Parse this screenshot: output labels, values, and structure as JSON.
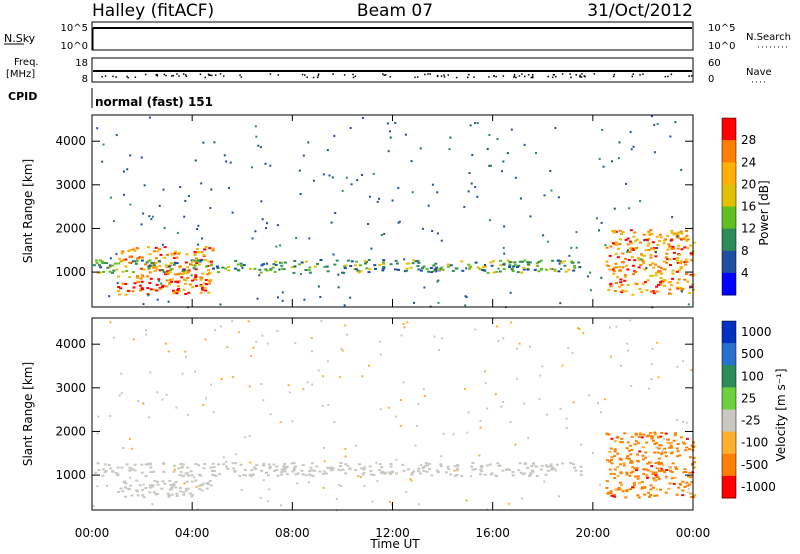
{
  "header": {
    "station": "Halley (fitACF)",
    "beam": "Beam 07",
    "date": "31/Oct/2012"
  },
  "top_panels": {
    "nsky_label": "N.Sky",
    "nsky_ticks": [
      "10^5",
      "10^0"
    ],
    "nsearch_label": "N.Search",
    "nsearch_ticks": [
      "10^5",
      "10^0"
    ],
    "freq_label": "Freq.",
    "freq_unit": "[MHz]",
    "freq_ticks": [
      "18",
      "8"
    ],
    "nave_label": "Nave",
    "nave_ticks": [
      "60",
      "0"
    ],
    "cpid_label": "CPID",
    "cpid_text": "normal (fast) 151"
  },
  "chart_data": [
    {
      "type": "heatmap",
      "name": "power",
      "ylabel": "Slant Range [km]",
      "y_ticks": [
        "1000",
        "2000",
        "3000",
        "4000"
      ],
      "ylim": [
        200,
        4600
      ],
      "xlim": [
        0,
        24
      ],
      "colorbar_label": "Power [dB]",
      "colorbar_ticks": [
        "28",
        "24",
        "20",
        "16",
        "12",
        "8",
        "4"
      ],
      "colorbar_colors": [
        "#ff0000",
        "#ff8000",
        "#ffb000",
        "#e0c000",
        "#60c020",
        "#2e8b57",
        "#1e4fa0",
        "#0000ff"
      ],
      "regions": [
        {
          "t_start": 1.0,
          "t_end": 4.8,
          "range_low": 500,
          "range_high": 1600,
          "level": 24
        },
        {
          "t_start": 0.0,
          "t_end": 19.5,
          "range_low": 1000,
          "range_high": 1300,
          "level": 10
        },
        {
          "t_start": 20.5,
          "t_end": 24.0,
          "range_low": 500,
          "range_high": 2000,
          "level": 22
        }
      ]
    },
    {
      "type": "heatmap",
      "name": "velocity",
      "ylabel": "Slant Range [km]",
      "y_ticks": [
        "1000",
        "2000",
        "3000",
        "4000"
      ],
      "ylim": [
        200,
        4600
      ],
      "xlim": [
        0,
        24
      ],
      "colorbar_label": "Velocity [m s⁻¹]",
      "colorbar_ticks": [
        "1000",
        "500",
        "100",
        "25",
        "-25",
        "-100",
        "-500",
        "-1000"
      ],
      "colorbar_colors": [
        "#0030c0",
        "#2a6fd0",
        "#2e8b57",
        "#6cd040",
        "#c8c8c0",
        "#ffb030",
        "#ff8000",
        "#ff0000"
      ],
      "regions": [
        {
          "t_start": 1.0,
          "t_end": 4.8,
          "range_low": 500,
          "range_high": 900,
          "level": 0
        },
        {
          "t_start": 0.0,
          "t_end": 19.5,
          "range_low": 1000,
          "range_high": 1300,
          "level": 0
        },
        {
          "t_start": 20.5,
          "t_end": 24.0,
          "range_low": 500,
          "range_high": 2000,
          "level": -300
        }
      ]
    }
  ],
  "x_axis": {
    "label": "Time UT",
    "ticks": [
      "00:00",
      "04:00",
      "08:00",
      "12:00",
      "16:00",
      "20:00",
      "00:00"
    ]
  }
}
